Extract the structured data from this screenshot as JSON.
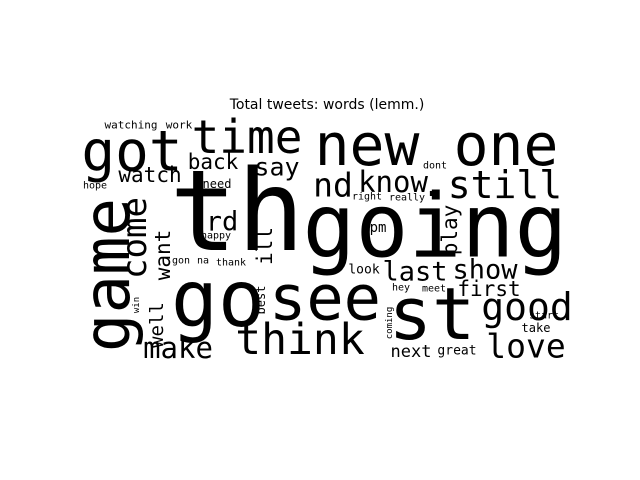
{
  "chart_data": {
    "type": "wordcloud",
    "title": "Total tweets: words (lemm.)",
    "words": [
      "th",
      "going",
      "new",
      "one",
      "got",
      "time",
      "game",
      "come",
      "go",
      "see",
      "st",
      "think",
      "make",
      "well",
      "want",
      "rd",
      "ill",
      "best",
      "back",
      "watch",
      "need",
      "say",
      "nd",
      "know",
      ".",
      "still",
      "pm",
      "play",
      "look",
      "last",
      "show",
      "first",
      "good",
      "love",
      "take",
      "start",
      "next",
      "great",
      "meet",
      "hey",
      "coming",
      "dont",
      "right",
      "really",
      "watching",
      "work",
      "hope",
      "happy",
      "gon",
      "na",
      "thank",
      "win"
    ]
  }
}
